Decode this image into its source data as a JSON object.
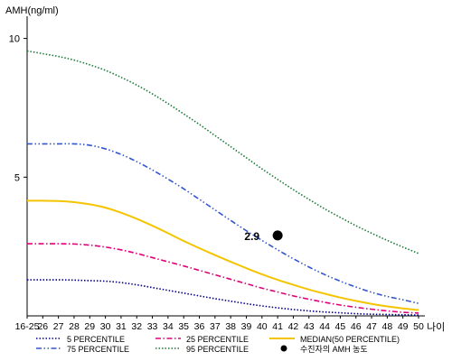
{
  "chart_data": {
    "type": "line",
    "ylabel": "AMH(ng/ml)",
    "xlabel": "나이",
    "ylim": [
      0,
      10.8
    ],
    "y_ticks": [
      5,
      10
    ],
    "x_ticks": [
      "16-25",
      "26",
      "27",
      "28",
      "29",
      "30",
      "31",
      "32",
      "33",
      "34",
      "35",
      "36",
      "37",
      "38",
      "39",
      "40",
      "41",
      "42",
      "43",
      "44",
      "45",
      "46",
      "47",
      "48",
      "49",
      "50"
    ],
    "x": [
      25,
      26,
      27,
      28,
      29,
      30,
      31,
      32,
      33,
      34,
      35,
      36,
      37,
      38,
      39,
      40,
      41,
      42,
      43,
      44,
      45,
      46,
      47,
      48,
      49,
      50
    ],
    "series": [
      {
        "name": "5 PERCENTILE",
        "color": "#00008b",
        "dash": "dotted",
        "values": [
          1.3,
          1.3,
          1.3,
          1.29,
          1.27,
          1.25,
          1.2,
          1.12,
          1.02,
          0.92,
          0.82,
          0.72,
          0.62,
          0.53,
          0.44,
          0.36,
          0.29,
          0.23,
          0.18,
          0.14,
          0.11,
          0.08,
          0.06,
          0.05,
          0.04,
          0.03
        ]
      },
      {
        "name": "25 PERCENTILE",
        "color": "#e0007a",
        "dash": "dashdot",
        "values": [
          2.6,
          2.6,
          2.6,
          2.59,
          2.55,
          2.48,
          2.38,
          2.25,
          2.1,
          1.95,
          1.8,
          1.64,
          1.48,
          1.32,
          1.16,
          1.0,
          0.86,
          0.72,
          0.6,
          0.49,
          0.39,
          0.31,
          0.24,
          0.18,
          0.13,
          0.1
        ]
      },
      {
        "name": "MEDIAN(50 PERCENTILE)",
        "color": "#f5c400",
        "dash": "solid",
        "values": [
          4.15,
          4.15,
          4.14,
          4.1,
          4.02,
          3.9,
          3.72,
          3.5,
          3.25,
          2.98,
          2.7,
          2.44,
          2.19,
          1.95,
          1.72,
          1.5,
          1.3,
          1.12,
          0.95,
          0.8,
          0.66,
          0.54,
          0.43,
          0.34,
          0.27,
          0.21
        ]
      },
      {
        "name": "75 PERCENTILE",
        "color": "#3355cc",
        "dash": "dashdotdot",
        "values": [
          6.2,
          6.2,
          6.2,
          6.2,
          6.15,
          6.02,
          5.82,
          5.56,
          5.26,
          4.93,
          4.58,
          4.2,
          3.82,
          3.44,
          3.07,
          2.72,
          2.38,
          2.06,
          1.76,
          1.49,
          1.25,
          1.04,
          0.85,
          0.7,
          0.58,
          0.45
        ]
      },
      {
        "name": "95 PERCENTILE",
        "color": "#1a7a3a",
        "dash": "dotted",
        "values": [
          9.55,
          9.45,
          9.35,
          9.22,
          9.05,
          8.85,
          8.6,
          8.32,
          8.0,
          7.65,
          7.28,
          6.9,
          6.5,
          6.1,
          5.7,
          5.3,
          4.92,
          4.55,
          4.2,
          3.86,
          3.55,
          3.25,
          2.98,
          2.72,
          2.48,
          2.25
        ]
      }
    ],
    "marker": {
      "name": "수진자의 AMH 농도",
      "x": 41,
      "y": 2.9,
      "label": "2.9",
      "color": "#000000"
    },
    "legend_placement": "bottom",
    "legend": [
      "5 PERCENTILE",
      "25 PERCENTILE",
      "MEDIAN(50 PERCENTILE)",
      "75 PERCENTILE",
      "95 PERCENTILE",
      "수진자의 AMH 농도"
    ],
    "grid": false
  }
}
